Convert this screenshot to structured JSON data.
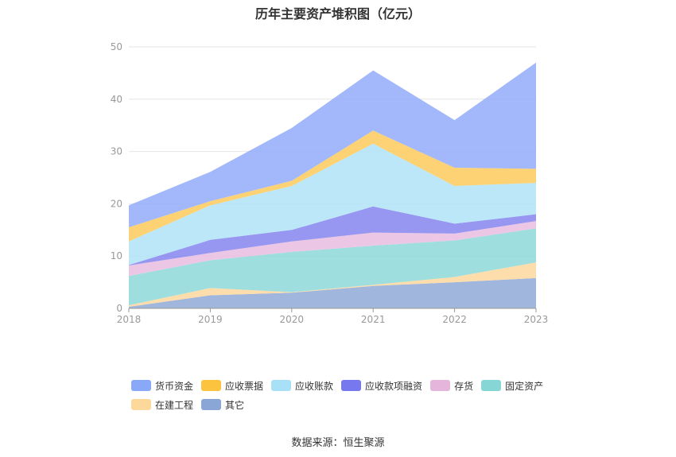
{
  "chart_data": {
    "type": "area",
    "stacked": true,
    "title": "历年主要资产堆积图（亿元）",
    "categories": [
      "2018",
      "2019",
      "2020",
      "2021",
      "2022",
      "2023"
    ],
    "ylim": [
      0,
      50
    ],
    "yticks": [
      0,
      10,
      20,
      30,
      40,
      50
    ],
    "grid": true,
    "legend_position": "bottom",
    "series": [
      {
        "name": "其它",
        "color": "#8fa9d6",
        "values": [
          0.3,
          2.5,
          3.0,
          4.3,
          5.0,
          5.8
        ]
      },
      {
        "name": "在建工程",
        "color": "#fbd79c",
        "values": [
          0.3,
          1.4,
          0.1,
          0.2,
          1.0,
          3.0
        ]
      },
      {
        "name": "固定资产",
        "color": "#8ed8d8",
        "values": [
          5.6,
          5.3,
          7.7,
          7.5,
          7.0,
          6.5
        ]
      },
      {
        "name": "存货",
        "color": "#e9bde0",
        "values": [
          2.0,
          1.4,
          2.0,
          2.5,
          1.3,
          1.4
        ]
      },
      {
        "name": "应收款项融资",
        "color": "#8585f0",
        "values": [
          0.1,
          2.5,
          2.2,
          5.0,
          1.9,
          1.3
        ]
      },
      {
        "name": "应收账款",
        "color": "#b0e3f8",
        "values": [
          4.5,
          6.6,
          8.4,
          12.0,
          7.2,
          6.0
        ]
      },
      {
        "name": "应收票据",
        "color": "#fcca5d",
        "values": [
          2.7,
          0.8,
          1.0,
          2.5,
          3.5,
          2.7
        ]
      },
      {
        "name": "货币资金",
        "color": "#93acf9",
        "values": [
          4.2,
          5.6,
          10.1,
          11.5,
          9.1,
          20.3
        ]
      }
    ]
  },
  "legend": [
    {
      "name": "货币资金",
      "color": "#8aa8f8"
    },
    {
      "name": "应收票据",
      "color": "#fcc43e"
    },
    {
      "name": "应收账款",
      "color": "#a8e0f8"
    },
    {
      "name": "应收款项融资",
      "color": "#7878ee"
    },
    {
      "name": "存货",
      "color": "#e6b5dc"
    },
    {
      "name": "固定资产",
      "color": "#86d6d6"
    },
    {
      "name": "在建工程",
      "color": "#fcd89a"
    },
    {
      "name": "其它",
      "color": "#8aa6d6"
    }
  ],
  "source": "数据来源：恒生聚源"
}
